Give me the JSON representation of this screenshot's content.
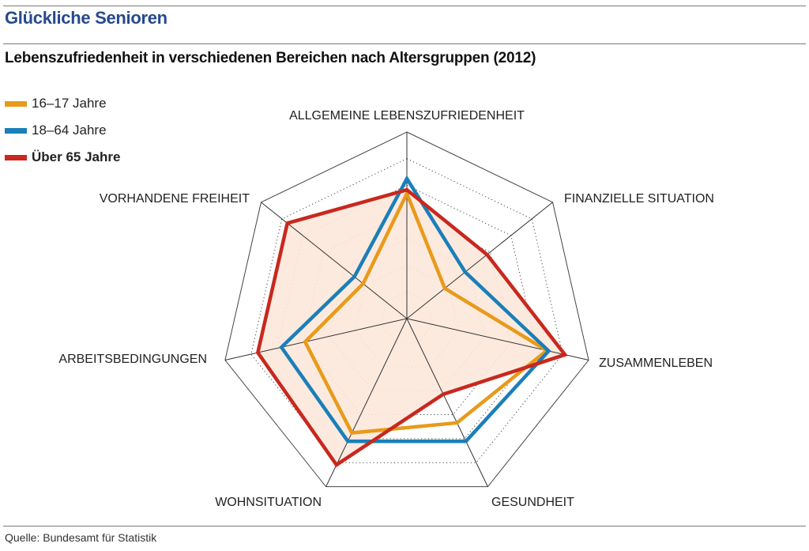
{
  "header": {
    "title": "Glückliche Senioren",
    "subtitle": "Lebenszufriedenheit in verschiedenen Bereichen nach Altersgruppen (2012)"
  },
  "legend": [
    {
      "label": "16–17 Jahre",
      "color": "#e89a1a",
      "bold": false
    },
    {
      "label": "18–64 Jahre",
      "color": "#1a7fb8",
      "bold": false
    },
    {
      "label": "Über 65 Jahre",
      "color": "#c8281e",
      "bold": true
    }
  ],
  "footer": {
    "source": "Quelle: Bundesamt für Statistik"
  },
  "chart_data": {
    "type": "radar",
    "title": "Glückliche Senioren",
    "subtitle": "Lebenszufriedenheit in verschiedenen Bereichen nach Altersgruppen (2012)",
    "categories": [
      "ALLGEMEINE LEBENSZUFRIEDENHEIT",
      "FINANZIELLE SITUATION",
      "ZUSAMMENLEBEN",
      "GESUNDHEIT",
      "WOHNSITUATION",
      "ARBEITSBEDINGUNGEN",
      "VORHANDENE FREIHEIT"
    ],
    "range": [
      0,
      1
    ],
    "grid_levels": 7,
    "grid": true,
    "legend_position": "top-left",
    "series": [
      {
        "name": "16–17 Jahre",
        "color": "#e89a1a",
        "values": [
          0.67,
          0.26,
          0.77,
          0.62,
          0.68,
          0.56,
          0.3
        ]
      },
      {
        "name": "18–64 Jahre",
        "color": "#1a7fb8",
        "values": [
          0.75,
          0.4,
          0.78,
          0.73,
          0.73,
          0.69,
          0.36
        ]
      },
      {
        "name": "Über 65 Jahre",
        "color": "#c8281e",
        "values": [
          0.69,
          0.55,
          0.87,
          0.45,
          0.87,
          0.82,
          0.82
        ],
        "fill": "#fce8dc"
      }
    ]
  }
}
